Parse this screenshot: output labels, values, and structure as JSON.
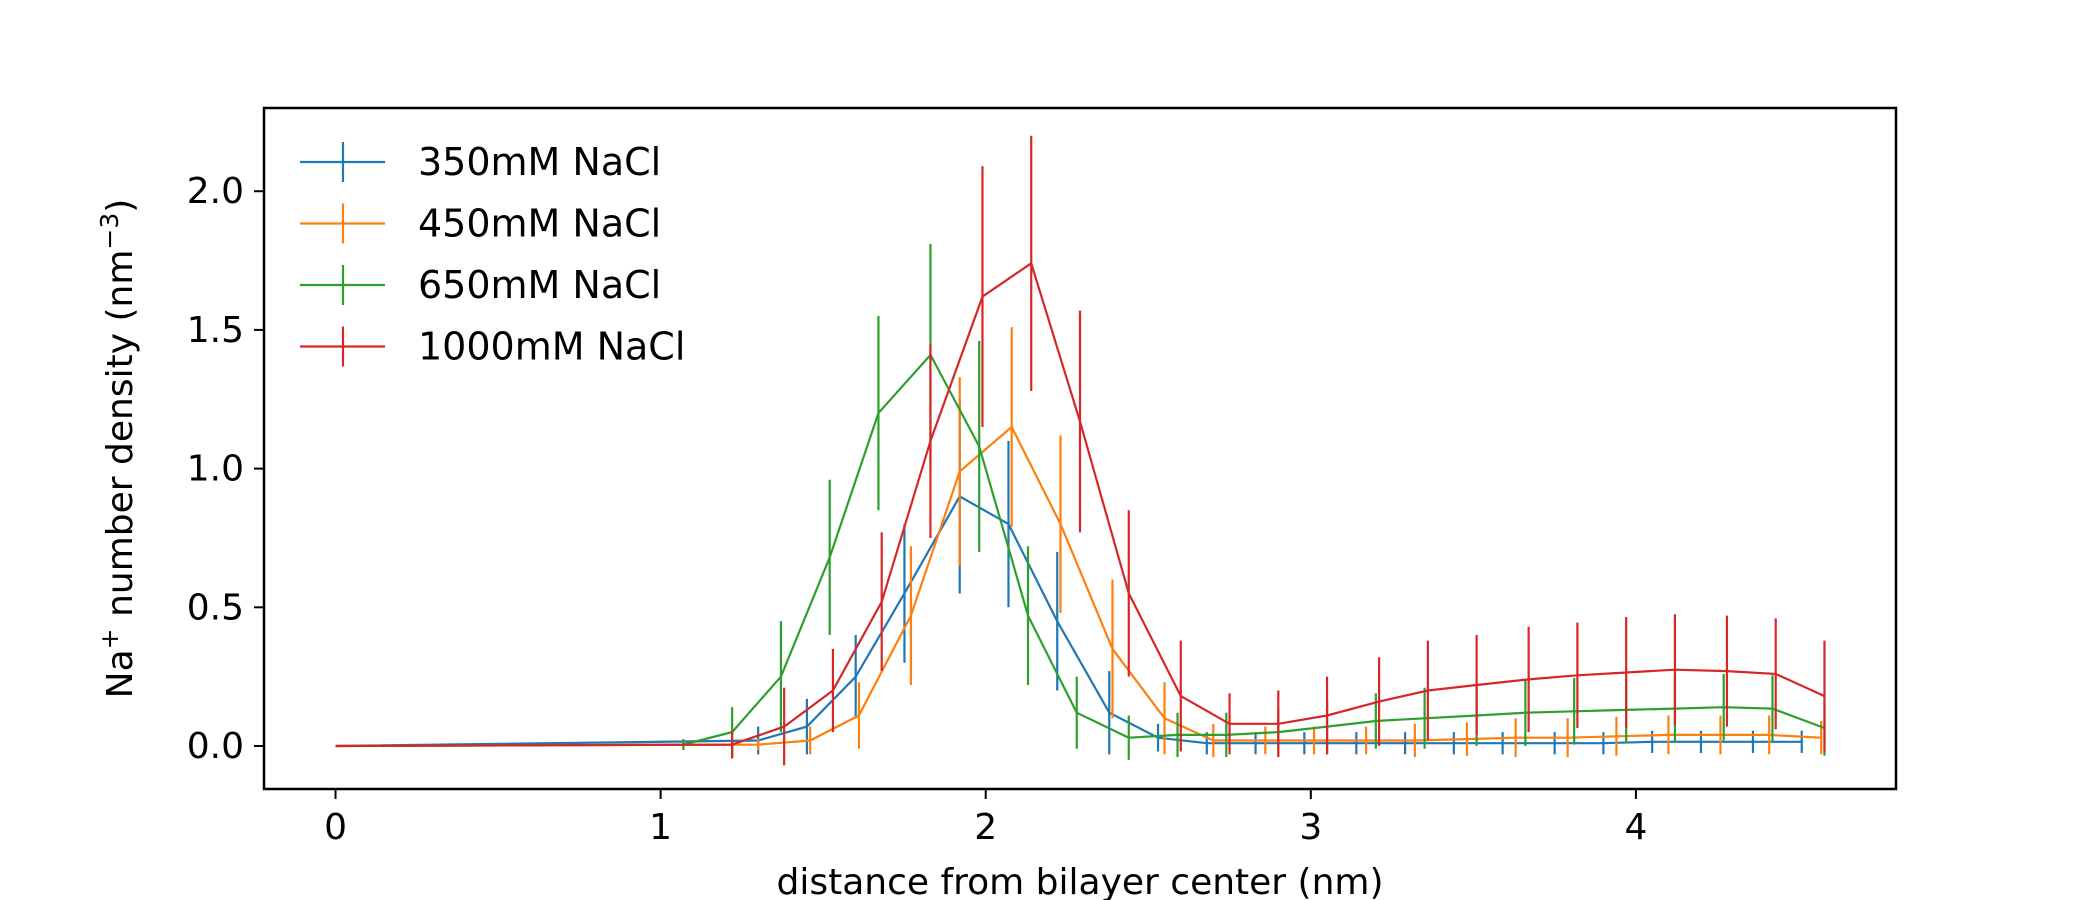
{
  "chart_data": {
    "type": "line",
    "xlabel": "distance from bilayer center (nm)",
    "ylabel_prefix": "Na",
    "ylabel_sup1": "+",
    "ylabel_middle": " number density (nm",
    "ylabel_sup2": "−3",
    "ylabel_suffix": ")",
    "xlim": [
      -0.22,
      4.8
    ],
    "ylim": [
      -0.155,
      2.3
    ],
    "xticks": [
      0,
      1,
      2,
      3,
      4
    ],
    "xtick_labels": [
      "0",
      "1",
      "2",
      "3",
      "4"
    ],
    "yticks": [
      0.0,
      0.5,
      1.0,
      1.5,
      2.0
    ],
    "ytick_labels": [
      "0.0",
      "0.5",
      "1.0",
      "1.5",
      "2.0"
    ],
    "grid": false,
    "legend_position": "top-left",
    "series": [
      {
        "name": "350mM NaCl",
        "color": "#1f77b4",
        "x": [
          0,
          1.3,
          1.45,
          1.6,
          1.75,
          1.92,
          2.07,
          2.22,
          2.38,
          2.53,
          2.68,
          2.83,
          2.98,
          3.14,
          3.29,
          3.44,
          3.59,
          3.75,
          3.9,
          4.05,
          4.2,
          4.36,
          4.51
        ],
        "y": [
          0,
          0.02,
          0.07,
          0.25,
          0.55,
          0.9,
          0.8,
          0.45,
          0.12,
          0.03,
          0.01,
          0.01,
          0.01,
          0.01,
          0.01,
          0.01,
          0.01,
          0.01,
          0.01,
          0.015,
          0.015,
          0.015,
          0.015
        ],
        "err": [
          0,
          0.05,
          0.1,
          0.15,
          0.25,
          0.35,
          0.3,
          0.25,
          0.15,
          0.05,
          0.04,
          0.04,
          0.04,
          0.04,
          0.04,
          0.04,
          0.04,
          0.04,
          0.04,
          0.04,
          0.04,
          0.04,
          0.04
        ]
      },
      {
        "name": "450mM NaCl",
        "color": "#ff7f0e",
        "x": [
          0,
          1.3,
          1.46,
          1.61,
          1.77,
          1.92,
          2.08,
          2.23,
          2.39,
          2.55,
          2.7,
          2.86,
          3.01,
          3.17,
          3.32,
          3.48,
          3.63,
          3.79,
          3.94,
          4.1,
          4.26,
          4.41,
          4.57
        ],
        "y": [
          0,
          0.005,
          0.02,
          0.11,
          0.47,
          0.99,
          1.15,
          0.8,
          0.35,
          0.1,
          0.02,
          0.02,
          0.02,
          0.02,
          0.02,
          0.025,
          0.03,
          0.03,
          0.035,
          0.04,
          0.04,
          0.04,
          0.03
        ],
        "err": [
          0,
          0.02,
          0.05,
          0.12,
          0.25,
          0.34,
          0.36,
          0.32,
          0.25,
          0.13,
          0.06,
          0.05,
          0.05,
          0.05,
          0.06,
          0.06,
          0.07,
          0.07,
          0.07,
          0.07,
          0.07,
          0.07,
          0.06
        ]
      },
      {
        "name": "650mM NaCl",
        "color": "#2ca02c",
        "x": [
          0,
          1.07,
          1.22,
          1.37,
          1.52,
          1.67,
          1.83,
          1.98,
          2.13,
          2.28,
          2.44,
          2.59,
          2.74,
          2.9,
          3.05,
          3.2,
          3.35,
          3.51,
          3.66,
          3.81,
          3.97,
          4.12,
          4.27,
          4.42,
          4.58
        ],
        "y": [
          0,
          0.005,
          0.05,
          0.25,
          0.68,
          1.2,
          1.41,
          1.08,
          0.47,
          0.12,
          0.03,
          0.04,
          0.04,
          0.05,
          0.07,
          0.09,
          0.1,
          0.11,
          0.12,
          0.125,
          0.13,
          0.135,
          0.14,
          0.135,
          0.065
        ],
        "err": [
          0,
          0.02,
          0.09,
          0.2,
          0.28,
          0.35,
          0.4,
          0.38,
          0.25,
          0.13,
          0.08,
          0.08,
          0.08,
          0.08,
          0.1,
          0.1,
          0.11,
          0.11,
          0.12,
          0.12,
          0.12,
          0.12,
          0.12,
          0.12,
          0.1
        ]
      },
      {
        "name": "1000mM NaCl",
        "color": "#d62728",
        "x": [
          0,
          1.22,
          1.38,
          1.53,
          1.68,
          1.83,
          1.99,
          2.14,
          2.29,
          2.44,
          2.6,
          2.75,
          2.9,
          3.05,
          3.21,
          3.36,
          3.51,
          3.67,
          3.82,
          3.97,
          4.12,
          4.28,
          4.43,
          4.58
        ],
        "y": [
          0,
          0.005,
          0.07,
          0.2,
          0.52,
          1.1,
          1.62,
          1.74,
          1.17,
          0.55,
          0.18,
          0.08,
          0.08,
          0.11,
          0.16,
          0.2,
          0.22,
          0.24,
          0.255,
          0.265,
          0.275,
          0.27,
          0.26,
          0.18
        ],
        "err": [
          0,
          0.05,
          0.14,
          0.15,
          0.25,
          0.35,
          0.47,
          0.46,
          0.4,
          0.3,
          0.2,
          0.11,
          0.12,
          0.14,
          0.16,
          0.18,
          0.18,
          0.19,
          0.19,
          0.2,
          0.2,
          0.2,
          0.2,
          0.2
        ]
      }
    ]
  }
}
